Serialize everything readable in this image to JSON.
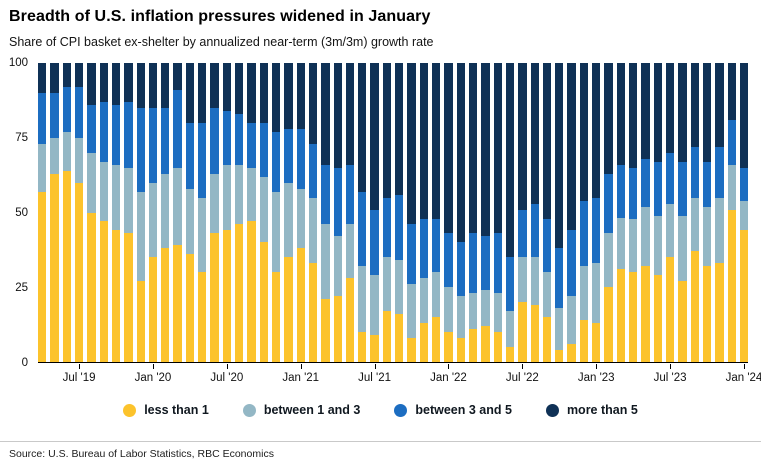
{
  "source": "Source: U.S. Bureau of Labor Statistics, RBC Economics",
  "chart_data": {
    "type": "bar",
    "stacked": true,
    "percent": true,
    "title": "Breadth of U.S. inflation pressures widened in January",
    "subtitle": "Share of CPI basket ex-shelter by annualized near-term (3m/3m) growth rate",
    "xlabel": "",
    "ylabel": "",
    "ylim": [
      0,
      100
    ],
    "yticks": [
      0,
      25,
      50,
      75,
      100
    ],
    "grid": false,
    "legend_position": "bottom",
    "xtick_labels": [
      "Jul '19",
      "Jan '20",
      "Jul '20",
      "Jan '21",
      "Jul '21",
      "Jan '22",
      "Jul '22",
      "Jan '23",
      "Jul '23",
      "Jan '24"
    ],
    "categories": [
      "Apr '19",
      "May '19",
      "Jun '19",
      "Jul '19",
      "Aug '19",
      "Sep '19",
      "Oct '19",
      "Nov '19",
      "Dec '19",
      "Jan '20",
      "Feb '20",
      "Mar '20",
      "Apr '20",
      "May '20",
      "Jun '20",
      "Jul '20",
      "Aug '20",
      "Sep '20",
      "Oct '20",
      "Nov '20",
      "Dec '20",
      "Jan '21",
      "Feb '21",
      "Mar '21",
      "Apr '21",
      "May '21",
      "Jun '21",
      "Jul '21",
      "Aug '21",
      "Sep '21",
      "Oct '21",
      "Nov '21",
      "Dec '21",
      "Jan '22",
      "Feb '22",
      "Mar '22",
      "Apr '22",
      "May '22",
      "Jun '22",
      "Jul '22",
      "Aug '22",
      "Sep '22",
      "Oct '22",
      "Nov '22",
      "Dec '22",
      "Jan '23",
      "Feb '23",
      "Mar '23",
      "Apr '23",
      "May '23",
      "Jun '23",
      "Jul '23",
      "Aug '23",
      "Sep '23",
      "Oct '23",
      "Nov '23",
      "Dec '23",
      "Jan '24"
    ],
    "series": [
      {
        "name": "less than 1",
        "color": "#FCC32C",
        "values": [
          57,
          63,
          64,
          60,
          50,
          47,
          44,
          43,
          27,
          35,
          38,
          39,
          36,
          30,
          43,
          44,
          46,
          47,
          40,
          30,
          35,
          38,
          33,
          21,
          22,
          28,
          10,
          9,
          17,
          16,
          8,
          13,
          15,
          10,
          8,
          11,
          12,
          10,
          5,
          20,
          19,
          15,
          4,
          6,
          14,
          13,
          25,
          31,
          30,
          32,
          29,
          35,
          27,
          37,
          32,
          33,
          51,
          44
        ]
      },
      {
        "name": "between 1 and 3",
        "color": "#93B7C5",
        "values": [
          16,
          12,
          13,
          15,
          20,
          20,
          22,
          22,
          30,
          25,
          25,
          26,
          22,
          25,
          20,
          22,
          20,
          18,
          22,
          27,
          25,
          20,
          22,
          25,
          20,
          18,
          22,
          20,
          18,
          18,
          18,
          15,
          15,
          15,
          14,
          12,
          12,
          13,
          12,
          15,
          16,
          15,
          14,
          16,
          18,
          20,
          18,
          17,
          18,
          20,
          20,
          18,
          22,
          18,
          20,
          22,
          15,
          10
        ]
      },
      {
        "name": "between 3 and 5",
        "color": "#1C6DC1",
        "values": [
          17,
          15,
          15,
          17,
          16,
          20,
          20,
          22,
          28,
          25,
          22,
          26,
          22,
          25,
          22,
          18,
          17,
          15,
          18,
          20,
          18,
          20,
          18,
          20,
          23,
          20,
          25,
          22,
          20,
          22,
          20,
          20,
          18,
          18,
          18,
          20,
          18,
          20,
          18,
          16,
          18,
          18,
          20,
          22,
          22,
          22,
          20,
          18,
          17,
          16,
          18,
          17,
          18,
          17,
          15,
          17,
          15,
          11
        ]
      },
      {
        "name": "more than 5",
        "color": "#0F3156",
        "values": [
          10,
          10,
          8,
          8,
          14,
          13,
          14,
          13,
          15,
          15,
          15,
          9,
          20,
          20,
          15,
          16,
          17,
          20,
          20,
          23,
          22,
          22,
          27,
          34,
          35,
          34,
          43,
          49,
          45,
          44,
          54,
          52,
          52,
          57,
          60,
          57,
          58,
          57,
          65,
          49,
          47,
          52,
          62,
          56,
          46,
          45,
          37,
          34,
          35,
          32,
          33,
          30,
          33,
          28,
          33,
          28,
          19,
          35
        ]
      }
    ]
  }
}
